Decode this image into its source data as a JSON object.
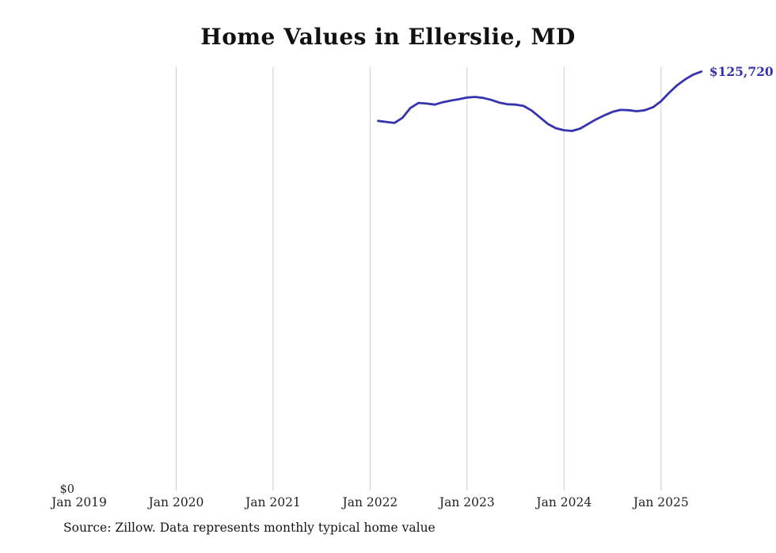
{
  "title": "Home Values in Ellerslie, MD",
  "y_zero_label": "$0",
  "end_label": "$125,720",
  "end_value": 125720,
  "source_note": "Source: Zillow. Data represents monthly typical home value",
  "colors": {
    "line": "#3533ad",
    "grid": "#cccccc",
    "text": "#222222",
    "background": "#ffffff"
  },
  "chart_data": {
    "type": "line",
    "title": "Home Values in Ellerslie, MD",
    "xlabel": "",
    "ylabel": "",
    "ylim": [
      0,
      127000
    ],
    "xlim": [
      2019.0,
      2025.5
    ],
    "grid": "vertical-only",
    "legend": "none",
    "x_tick_labels": [
      "Jan 2019",
      "Jan 2020",
      "Jan 2021",
      "Jan 2022",
      "Jan 2023",
      "Jan 2024",
      "Jan 2025"
    ],
    "x_tick_positions": [
      2019.0,
      2020.0,
      2021.0,
      2022.0,
      2023.0,
      2024.0,
      2025.0
    ],
    "gridline_x": [
      2020.0,
      2021.0,
      2022.0,
      2023.0,
      2024.0,
      2025.0
    ],
    "series": [
      {
        "name": "Monthly typical home value",
        "x": [
          2022.083,
          2022.167,
          2022.25,
          2022.333,
          2022.417,
          2022.5,
          2022.583,
          2022.667,
          2022.75,
          2022.833,
          2022.917,
          2023.0,
          2023.083,
          2023.167,
          2023.25,
          2023.333,
          2023.417,
          2023.5,
          2023.583,
          2023.667,
          2023.75,
          2023.833,
          2023.917,
          2024.0,
          2024.083,
          2024.167,
          2024.25,
          2024.333,
          2024.417,
          2024.5,
          2024.583,
          2024.667,
          2024.75,
          2024.833,
          2024.917,
          2025.0,
          2025.083,
          2025.167,
          2025.25,
          2025.333,
          2025.417
        ],
        "values": [
          110900,
          110600,
          110300,
          111800,
          114800,
          116300,
          116100,
          115800,
          116500,
          117000,
          117400,
          117900,
          118100,
          117800,
          117200,
          116400,
          115900,
          115800,
          115400,
          114000,
          112000,
          110000,
          108700,
          108100,
          107900,
          108600,
          110000,
          111400,
          112600,
          113600,
          114200,
          114100,
          113800,
          114100,
          115000,
          116800,
          119300,
          121600,
          123400,
          124800,
          125720
        ]
      }
    ]
  }
}
